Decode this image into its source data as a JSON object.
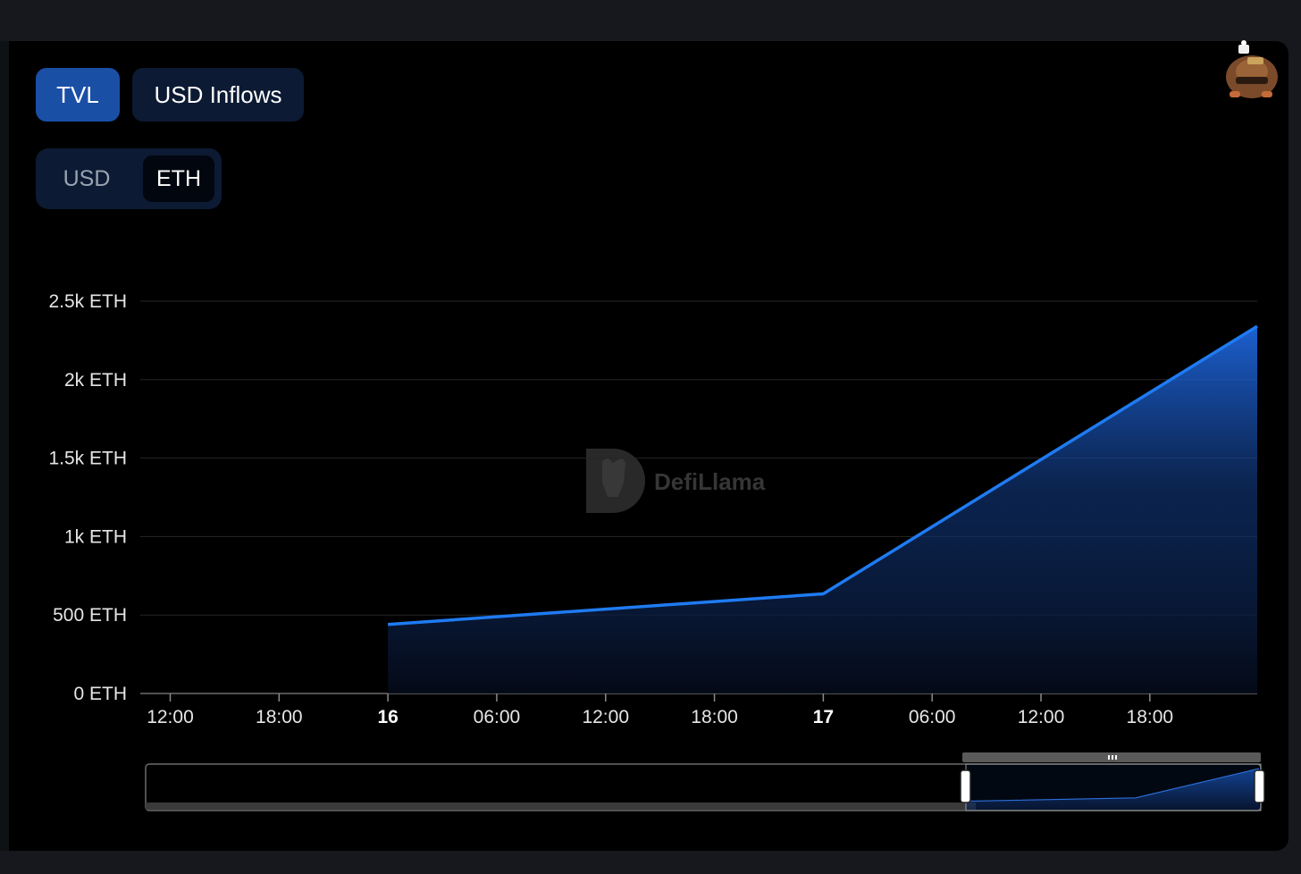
{
  "controls": {
    "metric_tabs": [
      "TVL",
      "USD Inflows"
    ],
    "active_metric": "TVL",
    "currency_toggle": [
      "USD",
      "ETH"
    ],
    "active_currency": "ETH"
  },
  "watermark": "DefiLlama",
  "colors": {
    "line": "#1f7bf2",
    "active_tab": "#1a4fa6",
    "inactive_tab": "#0c1a33",
    "background": "#000000"
  },
  "chart_data": {
    "type": "area",
    "y_ticks": [
      "0 ETH",
      "500 ETH",
      "1k ETH",
      "1.5k ETH",
      "2k ETH",
      "2.5k ETH"
    ],
    "y_tick_values": [
      0,
      500,
      1000,
      1500,
      2000,
      2500
    ],
    "ylim": [
      0,
      2500
    ],
    "x_ticks": [
      {
        "label": "12:00",
        "bold": false
      },
      {
        "label": "18:00",
        "bold": false
      },
      {
        "label": "16",
        "bold": true
      },
      {
        "label": "06:00",
        "bold": false
      },
      {
        "label": "12:00",
        "bold": false
      },
      {
        "label": "18:00",
        "bold": false
      },
      {
        "label": "17",
        "bold": true
      },
      {
        "label": "06:00",
        "bold": false
      },
      {
        "label": "12:00",
        "bold": false
      },
      {
        "label": "18:00",
        "bold": false
      }
    ],
    "x_tick_hours": [
      -12,
      -6,
      0,
      6,
      12,
      18,
      24,
      30,
      36,
      42
    ],
    "xlim_hours": [
      -13.65,
      47.92
    ],
    "series": [
      {
        "x_hours": [
          0,
          24,
          47.92
        ],
        "values": [
          440,
          635,
          2340
        ]
      }
    ],
    "grid": true,
    "legend": "none",
    "zoom_window": {
      "start_fraction": 0.75,
      "end_fraction": 1.0
    },
    "overview_values": [
      0,
      0,
      440,
      635,
      2340
    ]
  }
}
